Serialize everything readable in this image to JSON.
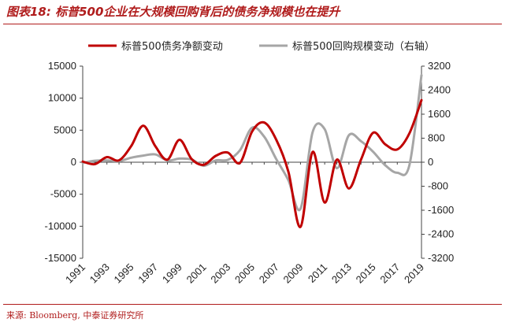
{
  "header": {
    "title": "图表18: 标普500企业在大规模回购背后的债务净规模也在提升"
  },
  "footer": {
    "source": "来源: Bloomberg, 中泰证券研究所"
  },
  "chart_data": {
    "type": "line",
    "title": "",
    "x": [
      1991,
      1992,
      1993,
      1994,
      1995,
      1996,
      1997,
      1998,
      1999,
      2000,
      2001,
      2002,
      2003,
      2004,
      2005,
      2006,
      2007,
      2008,
      2009,
      2010,
      2011,
      2012,
      2013,
      2014,
      2015,
      2016,
      2017,
      2018,
      2019
    ],
    "x_tick_labels": [
      "1991",
      "1993",
      "1995",
      "1997",
      "1999",
      "2001",
      "2003",
      "2005",
      "2007",
      "2009",
      "2011",
      "2013",
      "2015",
      "2017",
      "2019"
    ],
    "y_left": {
      "ylim": [
        -15000,
        15000
      ],
      "ticks": [
        -15000,
        -10000,
        -5000,
        0,
        5000,
        10000,
        15000
      ],
      "tick_labels": [
        "-15000",
        "-10000",
        "-5000",
        "0",
        "5000",
        "10000",
        "15000"
      ]
    },
    "y_right": {
      "ylim": [
        -3200,
        3200
      ],
      "ticks": [
        -3200,
        -2400,
        -1600,
        -800,
        0,
        800,
        1600,
        2400,
        3200
      ],
      "tick_labels": [
        "-3200",
        "-2400",
        "-1600",
        "-800",
        "0",
        "800",
        "1600",
        "2400",
        "3200"
      ]
    },
    "legend_position": "top",
    "series": [
      {
        "name": "标普500债务净额变动",
        "axis": "left",
        "color": "#c00000",
        "values": [
          100,
          -300,
          800,
          300,
          2500,
          5700,
          2500,
          400,
          3500,
          500,
          -400,
          1000,
          1500,
          -100,
          4800,
          6200,
          3500,
          -1500,
          -10100,
          1600,
          -6300,
          400,
          -4100,
          400,
          4600,
          2800,
          2000,
          4500,
          9700
        ]
      },
      {
        "name": "标普500回购规模变动（右轴）",
        "axis": "right",
        "color": "#a6a6a6",
        "values": [
          -20,
          50,
          60,
          40,
          150,
          220,
          260,
          60,
          120,
          90,
          -120,
          60,
          80,
          400,
          1150,
          850,
          100,
          -600,
          -1550,
          1000,
          1100,
          -200,
          900,
          700,
          350,
          -100,
          -350,
          -100,
          2900
        ]
      }
    ]
  }
}
